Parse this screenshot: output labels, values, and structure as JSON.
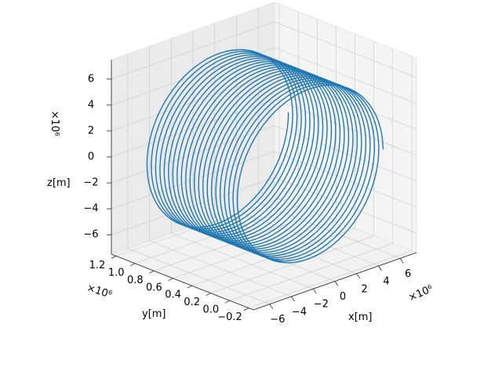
{
  "chart_data": {
    "type": "line3d",
    "title": "",
    "xlabel": "x[m]",
    "ylabel": "y[m]",
    "zlabel": "z[m]",
    "x_multiplier": "×10⁶",
    "y_multiplier": "×10⁶",
    "z_multiplier": "×10⁶",
    "xlim": [
      -7.5,
      7.5
    ],
    "ylim": [
      -0.25,
      1.25
    ],
    "zlim": [
      -7.5,
      7.5
    ],
    "x_ticks": [
      -6,
      -4,
      -2,
      0,
      2,
      4,
      6
    ],
    "x_tick_labels": [
      "−6",
      "−4",
      "−2",
      "0",
      "2",
      "4",
      "6"
    ],
    "y_ticks": [
      -0.2,
      0.0,
      0.2,
      0.4,
      0.6,
      0.8,
      1.0,
      1.2
    ],
    "y_tick_labels": [
      "−0.2",
      "0.0",
      "0.2",
      "0.4",
      "0.6",
      "0.8",
      "1.0",
      "1.2"
    ],
    "z_ticks": [
      -6,
      -4,
      -2,
      0,
      2,
      4,
      6
    ],
    "z_tick_labels": [
      "−6",
      "−4",
      "−2",
      "0",
      "2",
      "4",
      "6"
    ],
    "grid": true,
    "series": [
      {
        "color": "#1f77b4",
        "curve": "helix",
        "radius": 6.6,
        "center_x": 0.0,
        "center_z": 0.0,
        "y_start": 0.0,
        "y_end": 1.0,
        "turns": 22
      }
    ]
  }
}
